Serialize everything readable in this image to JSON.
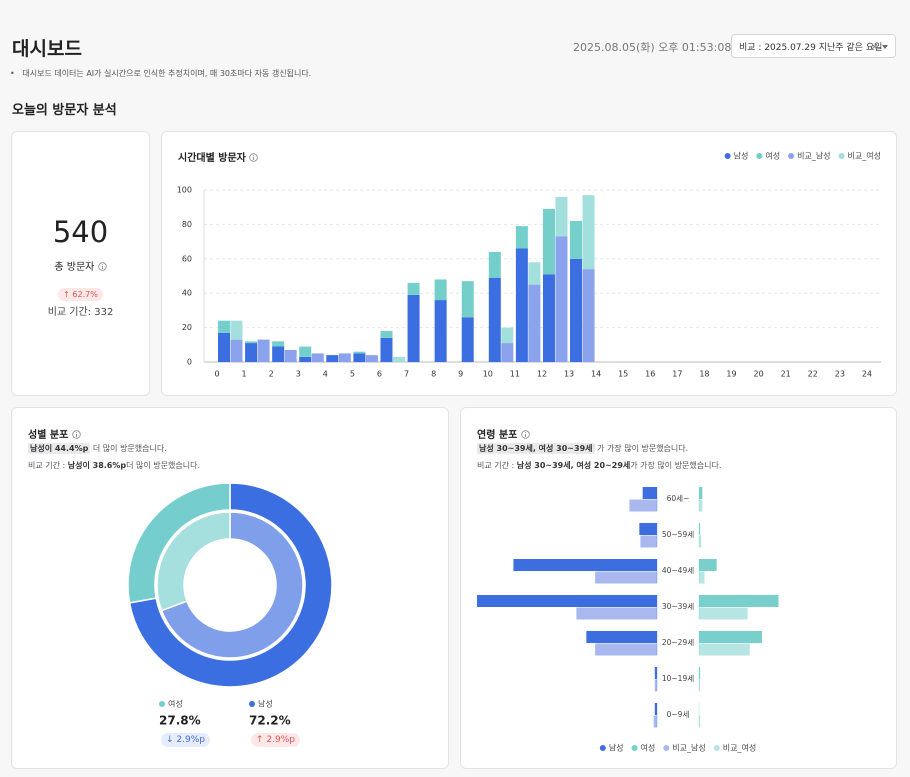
{
  "header": {
    "title": "대시보드",
    "timestamp": "2025.08.05(화) 오후 01:53:08 기준",
    "compare_select": "비교 : 2025.07.29 지난주 같은 요일",
    "note": "대시보드 데이터는 AI가 실시간으로 인식한 추정치이며, 매 30초마다 자동 갱신됩니다."
  },
  "section_title": "오늘의 방문자 분석",
  "total_card": {
    "value": 540,
    "label": "총 방문자",
    "change_label": "↑ 62.7%",
    "compare": "비교 기간: 332"
  },
  "chart_data": [
    {
      "type": "bar",
      "title": "시간대별 방문자",
      "categories": [
        0,
        1,
        2,
        3,
        4,
        5,
        6,
        7,
        8,
        9,
        10,
        11,
        12,
        13,
        14,
        15,
        16,
        17,
        18,
        19,
        20,
        21,
        22,
        23,
        24
      ],
      "series": [
        {
          "name": "남성",
          "color": "#3b6ee0",
          "values": [
            17,
            11,
            9,
            3,
            4,
            5,
            14,
            39,
            36,
            26,
            49,
            66,
            51,
            60,
            null,
            null,
            null,
            null,
            null,
            null,
            null,
            null,
            null,
            null,
            null
          ]
        },
        {
          "name": "여성",
          "color": "#74cfcb",
          "values": [
            7,
            1,
            3,
            6,
            0,
            1,
            4,
            7,
            12,
            21,
            15,
            13,
            38,
            22,
            null,
            null,
            null,
            null,
            null,
            null,
            null,
            null,
            null,
            null,
            null
          ]
        },
        {
          "name": "비교_남성",
          "color": "#8aa3ec",
          "values": [
            13,
            13,
            7,
            5,
            5,
            4,
            0,
            0,
            0,
            0,
            11,
            45,
            73,
            54,
            null,
            null,
            null,
            null,
            null,
            null,
            null,
            null,
            null,
            null,
            null
          ]
        },
        {
          "name": "비교_여성",
          "color": "#a3e0dd",
          "values": [
            11,
            0,
            0,
            0,
            0,
            0,
            3,
            0,
            0,
            0,
            9,
            13,
            23,
            43,
            null,
            null,
            null,
            null,
            null,
            null,
            null,
            null,
            null,
            null,
            null
          ]
        }
      ],
      "ylim": [
        0,
        100
      ],
      "yticks": [
        0,
        20,
        40,
        60,
        80,
        100
      ],
      "grid": true,
      "legend": "top-right"
    },
    {
      "type": "pie",
      "title": "성별 분포",
      "summary": {
        "highlight": "남성이 44.4%p",
        "text": " 더 많이 방문했습니다."
      },
      "compare_summary": {
        "prefix": "비교 기간 : ",
        "highlight": "남성이 38.6%p",
        "text": "더 많이 방문했습니다."
      },
      "categories": [
        "여성",
        "남성"
      ],
      "colors": [
        "#76cdcd",
        "#3b6ee0"
      ],
      "compare_colors": [
        "#a6e0de",
        "#7f9fea"
      ],
      "values": [
        27.8,
        72.2
      ],
      "value_labels": [
        "27.8%",
        "72.2%"
      ],
      "compare_values": [
        30.7,
        69.3
      ],
      "change_labels": [
        "↓ 2.9%p",
        "↑ 2.9%p"
      ]
    },
    {
      "type": "butterfly",
      "title": "연령 분포",
      "summary": {
        "highlight": "남성 30~39세, 여성 30~39세",
        "text": " 가 가장 많이 방문했습니다."
      },
      "compare_summary": {
        "prefix": "비교 기간 : ",
        "highlight": "남성 30~39세, 여성 20~29세",
        "text": "가 가장 많이 방문했습니다."
      },
      "categories": [
        "60세~",
        "50~59세",
        "40~49세",
        "30~39세",
        "20~29세",
        "10~19세",
        "0~9세"
      ],
      "series": [
        {
          "name": "남성",
          "color": "#3d6ee0",
          "values": [
            13,
            16,
            130,
            163,
            64,
            2,
            2
          ]
        },
        {
          "name": "여성",
          "color": "#79cfcc",
          "values": [
            3,
            1,
            16,
            72,
            57,
            1,
            0
          ]
        },
        {
          "name": "비교_남성",
          "color": "#a9b9ef",
          "values": [
            25,
            15,
            56,
            73,
            56,
            2,
            3
          ]
        },
        {
          "name": "비교_여성",
          "color": "#b7e5e3",
          "values": [
            3,
            2,
            5,
            44,
            46,
            1,
            1
          ]
        }
      ],
      "legend": "bottom"
    }
  ]
}
